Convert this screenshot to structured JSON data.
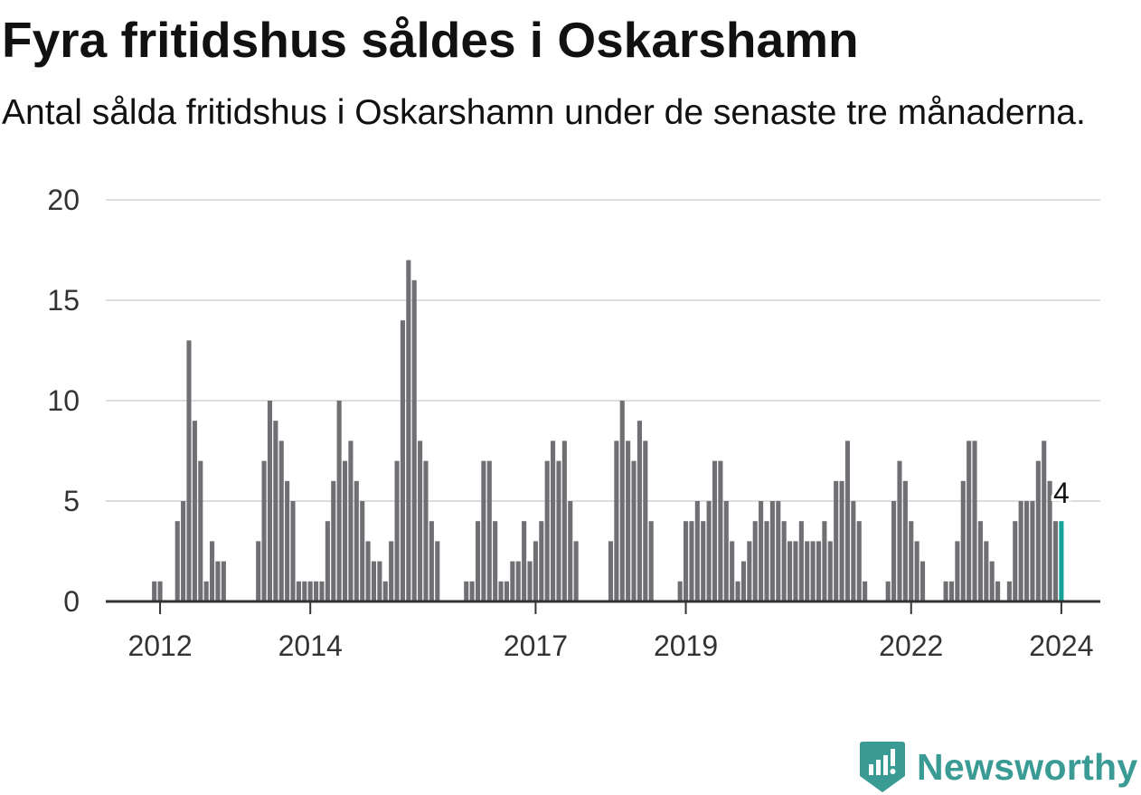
{
  "title": "Fyra fritidshus såldes i Oskarshamn",
  "subtitle": "Antal sålda fritidshus i Oskarshamn under de senaste tre månaderna.",
  "brand": {
    "name": "Newsworthy",
    "color": "#3a9b94",
    "icon": "newsworthy-logo-icon"
  },
  "colors": {
    "bar": "#707074",
    "highlight": "#14a398",
    "grid": "#dddddd",
    "axis": "#333333"
  },
  "chart_data": {
    "type": "bar",
    "title": "",
    "xlabel": "",
    "ylabel": "",
    "ylim": [
      0,
      20
    ],
    "yticks": [
      "0",
      "5",
      "10",
      "15",
      "20"
    ],
    "grid": true,
    "xticks": [
      {
        "label": "2012",
        "x": 9
      },
      {
        "label": "2014",
        "x": 35
      },
      {
        "label": "2017",
        "x": 74
      },
      {
        "label": "2019",
        "x": 100
      },
      {
        "label": "2022",
        "x": 139
      },
      {
        "label": "2024",
        "x": 165
      }
    ],
    "x_start": "2011-01",
    "x_unit": "month",
    "highlight_last": true,
    "last_value_label": "4",
    "values": [
      0,
      0,
      0,
      0,
      0,
      0,
      0,
      0,
      1,
      1,
      0,
      0,
      4,
      5,
      13,
      9,
      7,
      1,
      3,
      2,
      2,
      0,
      0,
      0,
      0,
      0,
      3,
      7,
      10,
      9,
      8,
      6,
      5,
      1,
      1,
      1,
      1,
      1,
      4,
      6,
      10,
      7,
      8,
      6,
      5,
      3,
      2,
      2,
      1,
      3,
      7,
      14,
      17,
      16,
      8,
      7,
      4,
      3,
      0,
      0,
      0,
      0,
      1,
      1,
      4,
      7,
      7,
      4,
      1,
      1,
      2,
      2,
      4,
      2,
      3,
      4,
      7,
      8,
      7,
      8,
      5,
      3,
      0,
      0,
      0,
      0,
      0,
      3,
      8,
      10,
      8,
      7,
      9,
      8,
      4,
      0,
      0,
      0,
      0,
      1,
      4,
      4,
      5,
      4,
      5,
      7,
      7,
      5,
      3,
      1,
      2,
      3,
      4,
      5,
      4,
      5,
      5,
      4,
      3,
      3,
      4,
      3,
      3,
      3,
      4,
      3,
      6,
      6,
      8,
      5,
      4,
      1,
      0,
      0,
      0,
      1,
      5,
      7,
      6,
      4,
      3,
      2,
      0,
      0,
      0,
      1,
      1,
      3,
      6,
      8,
      8,
      4,
      3,
      2,
      1,
      0,
      1,
      4,
      5,
      5,
      5,
      7,
      8,
      6,
      4,
      4
    ]
  }
}
